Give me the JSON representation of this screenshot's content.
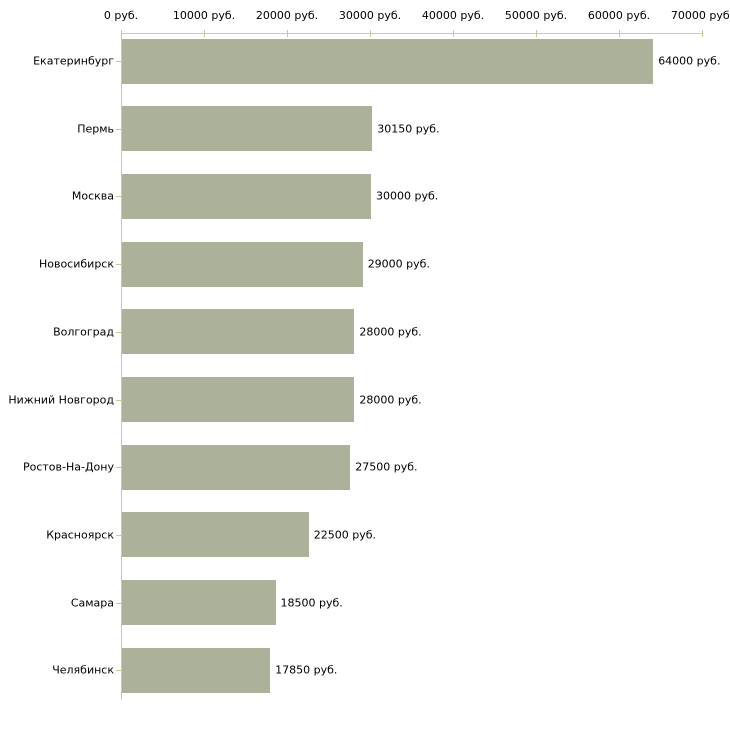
{
  "chart_data": {
    "type": "bar",
    "orientation": "horizontal",
    "title": "",
    "xlabel": "",
    "ylabel": "",
    "currency_suffix": " руб.",
    "categories": [
      "Екатеринбург",
      "Пермь",
      "Москва",
      "Новосибирск",
      "Волгоград",
      "Нижний Новгород",
      "Ростов-На-Дону",
      "Красноярск",
      "Самара",
      "Челябинск"
    ],
    "values": [
      64000,
      30150,
      30000,
      29000,
      28000,
      28000,
      27500,
      22500,
      18500,
      17850
    ],
    "value_labels": [
      "64000 руб.",
      "30150 руб.",
      "30000 руб.",
      "29000 руб.",
      "28000 руб.",
      "28000 руб.",
      "27500 руб.",
      "22500 руб.",
      "18500 руб.",
      "17850 руб."
    ],
    "x_axis_tick_labels": [
      "0 руб.",
      "10000 руб.",
      "20000 руб.",
      "30000 руб.",
      "40000 руб.",
      "50000 руб.",
      "60000 руб.",
      "70000 руб."
    ],
    "x_axis_tick_values": [
      0,
      10000,
      20000,
      30000,
      40000,
      50000,
      60000,
      70000
    ],
    "xlim": [
      0,
      70000
    ],
    "grid": false,
    "legend": false,
    "colors": {
      "bar_fill": "#acb299",
      "axis_line": "#c6c6c6",
      "tick_mark": "#c8c89b",
      "text": "#000000",
      "background": "#ffffff"
    }
  }
}
